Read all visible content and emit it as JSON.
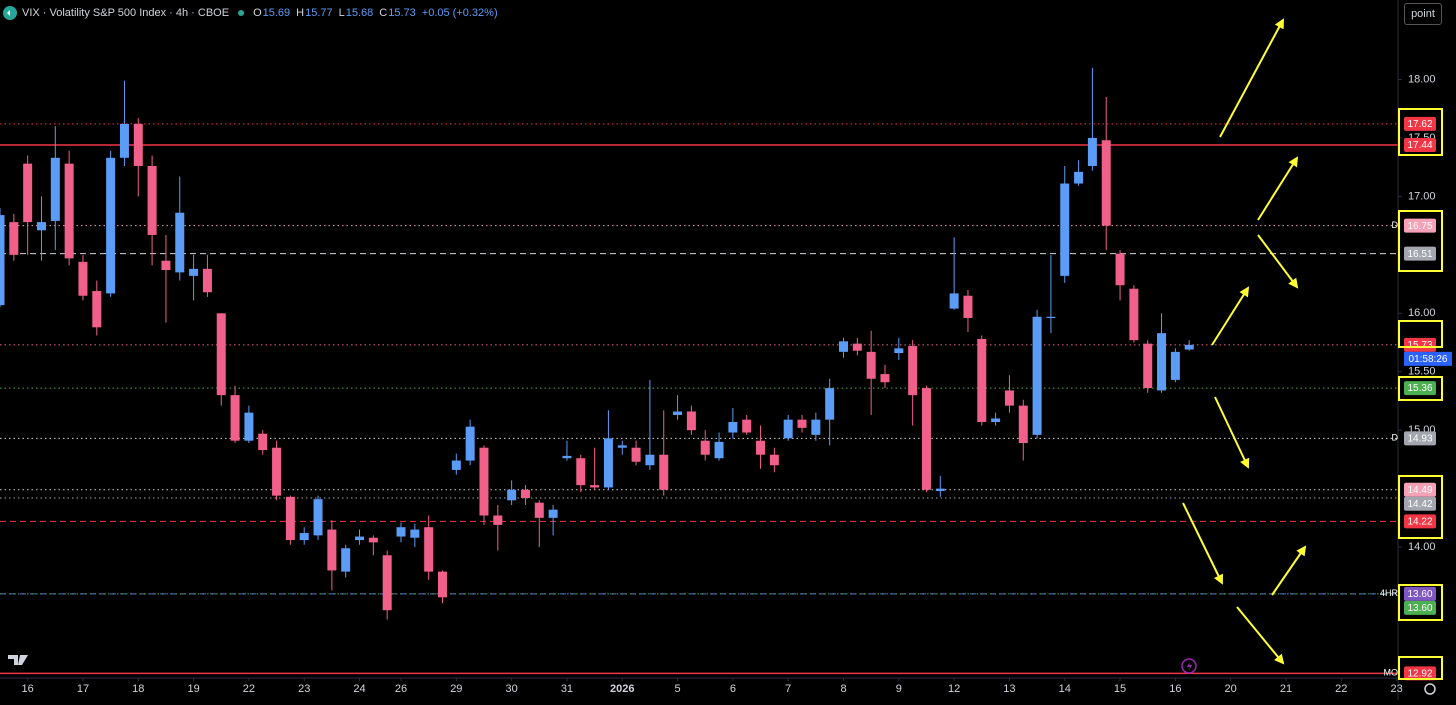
{
  "toolbar": {
    "button": "point"
  },
  "chart_data": {
    "type": "candlestick",
    "title": "VIX · Volatility S&P 500 Index · 4h · CBOE",
    "ohlc": [
      {
        "label": "O",
        "value": 15.69
      },
      {
        "label": "H",
        "value": 15.77
      },
      {
        "label": "L",
        "value": 15.68
      },
      {
        "label": "C",
        "value": 15.73
      }
    ],
    "change": "+0.05 (+0.32%)",
    "up_color": "#5b9cf6",
    "down_color": "#f0608a",
    "open": [
      16.07,
      16.78,
      17.28,
      16.71,
      16.79,
      17.28,
      16.44,
      16.19,
      16.17,
      17.33,
      17.62,
      17.26,
      16.45,
      16.35,
      16.32,
      16.38,
      16.0,
      15.3,
      14.91,
      14.97,
      14.85,
      14.43,
      14.06,
      14.1,
      14.15,
      13.79,
      14.06,
      14.08,
      13.93,
      14.09,
      14.08,
      14.17,
      13.79,
      14.66,
      14.74,
      14.85,
      14.27,
      14.4,
      14.49,
      14.38,
      14.25,
      14.76,
      14.76,
      14.53,
      14.51,
      14.85,
      14.85,
      14.7,
      14.79,
      15.13,
      15.16,
      14.91,
      14.76,
      14.98,
      15.09,
      14.91,
      14.79,
      14.93,
      15.09,
      14.96,
      15.09,
      15.67,
      15.74,
      15.67,
      15.48,
      15.66,
      15.72,
      15.36,
      14.48,
      16.04,
      16.15,
      15.78,
      15.07,
      15.34,
      15.21,
      14.96,
      15.96,
      16.32,
      17.11,
      17.26,
      17.48,
      16.51,
      16.21,
      15.74,
      15.34,
      15.43,
      15.69
    ],
    "high": [
      16.9,
      16.85,
      17.35,
      17.0,
      17.6,
      17.39,
      16.5,
      16.28,
      17.39,
      17.99,
      17.67,
      17.35,
      16.67,
      17.17,
      16.5,
      16.5,
      16.0,
      15.38,
      15.21,
      15.0,
      14.91,
      14.44,
      14.17,
      14.44,
      14.23,
      14.02,
      14.15,
      14.1,
      13.97,
      14.21,
      14.2,
      14.27,
      13.8,
      14.8,
      15.09,
      14.87,
      14.36,
      14.57,
      14.53,
      14.4,
      14.36,
      14.91,
      14.79,
      14.85,
      15.17,
      14.91,
      14.91,
      15.43,
      15.17,
      15.3,
      15.21,
      15.0,
      14.98,
      15.19,
      15.13,
      15.04,
      14.85,
      15.13,
      15.13,
      15.15,
      15.44,
      15.79,
      15.79,
      15.85,
      15.56,
      15.79,
      15.77,
      15.38,
      14.61,
      16.65,
      16.2,
      15.81,
      15.15,
      15.47,
      15.26,
      16.03,
      16.5,
      17.26,
      17.31,
      18.1,
      17.85,
      16.54,
      16.24,
      15.77,
      16.0,
      15.7,
      15.77
    ],
    "low": [
      16.05,
      16.45,
      16.5,
      16.45,
      16.54,
      16.41,
      16.11,
      15.81,
      16.14,
      17.26,
      17.0,
      16.41,
      15.92,
      16.28,
      16.11,
      16.14,
      15.21,
      14.89,
      14.89,
      14.79,
      14.4,
      14.02,
      14.02,
      14.06,
      13.63,
      13.74,
      14.02,
      13.93,
      13.38,
      14.04,
      14.0,
      13.72,
      13.52,
      14.62,
      14.7,
      14.19,
      13.97,
      14.36,
      14.36,
      14.0,
      14.1,
      14.74,
      14.47,
      14.49,
      14.49,
      14.79,
      14.7,
      14.66,
      14.44,
      15.09,
      14.96,
      14.74,
      14.74,
      14.93,
      14.96,
      14.67,
      14.64,
      14.91,
      14.98,
      14.91,
      14.87,
      15.62,
      15.64,
      15.13,
      15.36,
      15.6,
      15.04,
      14.47,
      14.43,
      16.03,
      15.84,
      15.04,
      15.04,
      15.15,
      14.74,
      14.93,
      15.83,
      16.26,
      17.09,
      17.22,
      16.54,
      16.11,
      15.75,
      15.32,
      15.32,
      15.41,
      15.68
    ],
    "close": [
      16.84,
      16.5,
      16.78,
      16.78,
      17.33,
      16.47,
      16.15,
      15.88,
      17.33,
      17.62,
      17.26,
      16.67,
      16.37,
      16.86,
      16.38,
      16.18,
      15.3,
      14.91,
      15.15,
      14.83,
      14.44,
      14.06,
      14.12,
      14.41,
      13.8,
      13.99,
      14.09,
      14.04,
      13.46,
      14.17,
      14.15,
      13.79,
      13.57,
      14.74,
      15.03,
      14.27,
      14.19,
      14.49,
      14.42,
      14.25,
      14.32,
      14.78,
      14.53,
      14.51,
      14.93,
      14.87,
      14.73,
      14.79,
      14.49,
      15.16,
      15.0,
      14.79,
      14.9,
      15.07,
      14.98,
      14.79,
      14.7,
      15.09,
      15.02,
      15.09,
      15.36,
      15.76,
      15.68,
      15.44,
      15.41,
      15.7,
      15.3,
      14.49,
      14.5,
      16.17,
      15.96,
      15.07,
      15.1,
      15.21,
      14.89,
      15.97,
      15.97,
      17.11,
      17.21,
      17.5,
      16.75,
      16.24,
      15.77,
      15.36,
      15.83,
      15.67,
      15.73
    ],
    "xlim": [
      0,
      101.1
    ],
    "ylim": [
      12.88,
      18.68
    ],
    "xticks": [
      {
        "value": 2,
        "label": "16"
      },
      {
        "value": 6,
        "label": "17"
      },
      {
        "value": 10,
        "label": "18"
      },
      {
        "value": 14,
        "label": "19"
      },
      {
        "value": 18,
        "label": "22"
      },
      {
        "value": 22,
        "label": "23"
      },
      {
        "value": 26,
        "label": "24"
      },
      {
        "value": 29,
        "label": "26"
      },
      {
        "value": 33,
        "label": "29"
      },
      {
        "value": 37,
        "label": "30"
      },
      {
        "value": 41,
        "label": "31"
      },
      {
        "value": 45,
        "label": "2026",
        "bold": true
      },
      {
        "value": 49,
        "label": "5"
      },
      {
        "value": 53,
        "label": "6"
      },
      {
        "value": 57,
        "label": "7"
      },
      {
        "value": 61,
        "label": "8"
      },
      {
        "value": 65,
        "label": "9"
      },
      {
        "value": 69,
        "label": "12"
      },
      {
        "value": 73,
        "label": "13"
      },
      {
        "value": 77,
        "label": "14"
      },
      {
        "value": 81,
        "label": "15"
      },
      {
        "value": 85,
        "label": "16"
      },
      {
        "value": 89,
        "label": "20"
      },
      {
        "value": 93,
        "label": "21"
      },
      {
        "value": 97,
        "label": "22"
      },
      {
        "value": 101,
        "label": "23"
      }
    ],
    "yticks": [
      {
        "value": 14,
        "label": "14.00"
      },
      {
        "value": 15,
        "label": "15.00"
      },
      {
        "value": 15.5,
        "label": "15.50"
      },
      {
        "value": 16,
        "label": "16.00"
      },
      {
        "value": 17,
        "label": "17.00"
      },
      {
        "value": 17.5,
        "label": "17.50"
      },
      {
        "value": 18,
        "label": "18.00"
      }
    ],
    "levels": [
      {
        "value": 17.62,
        "color": "#f23645",
        "style": "dotted",
        "label_bg": "#f23645"
      },
      {
        "value": 17.44,
        "color": "#f23645",
        "style": "solid",
        "label_bg": "#f23645"
      },
      {
        "value": 16.75,
        "color": "#f7a1b6",
        "style": "dotted",
        "label_bg": "#f7a1b6",
        "tag": "D"
      },
      {
        "value": 16.51,
        "color": "#d1d4dc",
        "style": "dashed",
        "label_bg": "#a3a6af"
      },
      {
        "value": 15.73,
        "color": "#f0608a",
        "style": "dotted",
        "label_bg": "#f23645",
        "countdown": "01:58:26"
      },
      {
        "value": 15.36,
        "color": "#4caf50",
        "style": "dotted",
        "label_bg": "#4caf50"
      },
      {
        "value": 14.93,
        "color": "#d1d4dc",
        "style": "dotted",
        "label_bg": "#a3a6af",
        "tag": "D"
      },
      {
        "value": 14.49,
        "color": "#d1d4dc",
        "style": "dotted",
        "label_bg": "#f7a1b6"
      },
      {
        "value": 14.42,
        "color": "#a3a6af",
        "style": "dotted",
        "label_bg": "#a3a6af"
      },
      {
        "value": 14.22,
        "color": "#f23645",
        "style": "dashed",
        "label_bg": "#f23645"
      },
      {
        "value": 13.6,
        "label": "13.60",
        "color": "#5b6ee1",
        "style": "dashed",
        "label_bg": "#7e57c2",
        "tag": "4HR"
      },
      {
        "value": 13.6,
        "label": "13.60",
        "color": "#4caf50",
        "style": "dotted",
        "label_bg": "#4caf50"
      },
      {
        "value": 12.92,
        "color": "#f23645",
        "style": "solid",
        "label_bg": "#f23645",
        "tag": "MO"
      }
    ]
  }
}
